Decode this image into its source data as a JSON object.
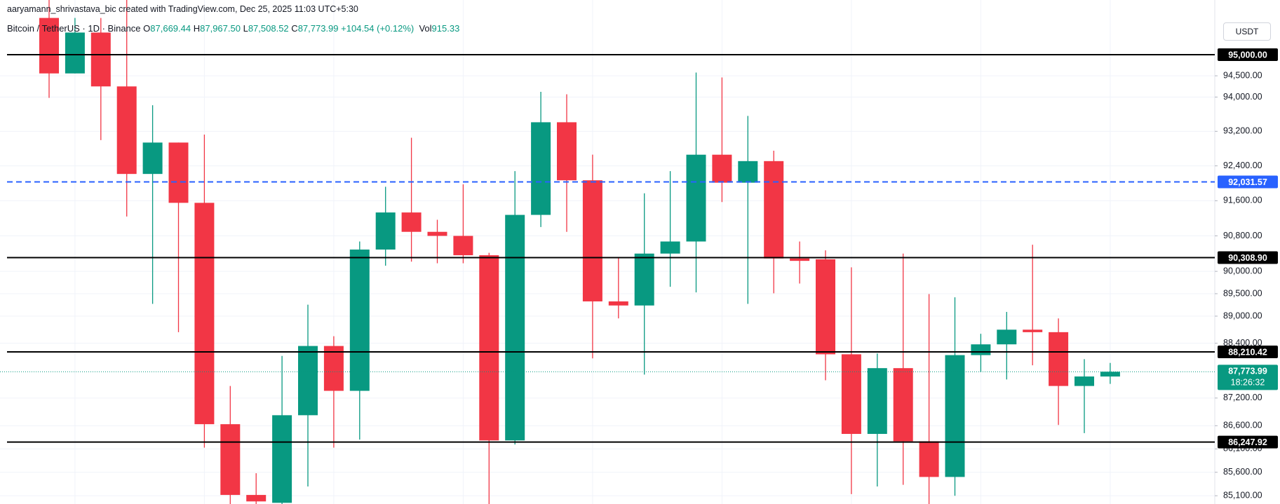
{
  "header": {
    "attribution": "aaryamann_shrivastava_bic created with TradingView.com, Dec 25, 2025 11:03 UTC+5:30",
    "symbol": "Bitcoin / TetherUS · 1D · Binance",
    "ohlc": [
      {
        "label": "O",
        "value": "87,669.44"
      },
      {
        "label": "H",
        "value": "87,967.50"
      },
      {
        "label": "L",
        "value": "87,508.52"
      },
      {
        "label": "C",
        "value": "87,773.99"
      }
    ],
    "change": "+104.54 (+0.12%)",
    "volume": {
      "label": "Vol",
      "value": "915.33"
    },
    "currency": "USDT"
  },
  "chart_data": {
    "type": "candlestick",
    "log": true,
    "grid": true,
    "up_color": "#089981",
    "down_color": "#f23645",
    "ylim": [
      84925,
      96304
    ],
    "yticks": [
      {
        "value": 94500,
        "label": "94,500.00"
      },
      {
        "value": 94000,
        "label": "94,000.00"
      },
      {
        "value": 93200,
        "label": "93,200.00"
      },
      {
        "value": 92400,
        "label": "92,400.00"
      },
      {
        "value": 91600,
        "label": "91,600.00"
      },
      {
        "value": 90800,
        "label": "90,800.00"
      },
      {
        "value": 90000,
        "label": "90,000.00"
      },
      {
        "value": 89500,
        "label": "89,500.00"
      },
      {
        "value": 89000,
        "label": "89,000.00"
      },
      {
        "value": 88400,
        "label": "88,400.00"
      },
      {
        "value": 87200,
        "label": "87,200.00"
      },
      {
        "value": 86600,
        "label": "86,600.00"
      },
      {
        "value": 86100,
        "label": "86,100.00"
      },
      {
        "value": 85600,
        "label": "85,600.00"
      },
      {
        "value": 85100,
        "label": "85,100.00"
      }
    ],
    "open": [
      95874,
      94556,
      95525,
      94250,
      92214,
      92939,
      91552,
      86633,
      85117,
      84950,
      86827,
      88340,
      87357,
      90491,
      91332,
      90892,
      90800,
      90363,
      86283,
      91277,
      93411,
      92068,
      89328,
      89237,
      90400,
      90673,
      92658,
      92013,
      92510,
      90290,
      90272,
      88157,
      86423,
      87853,
      86265,
      85500,
      88139,
      88376,
      88700,
      88645,
      87463,
      87669.44
    ],
    "high": [
      96304,
      95874,
      95874,
      96304,
      93809,
      92939,
      93125,
      87463,
      85580,
      88121,
      89255,
      88555,
      90673,
      91920,
      93050,
      91166,
      91976,
      90418,
      92278,
      94123,
      94066,
      92658,
      90309,
      91771,
      92278,
      94577,
      94461,
      93559,
      92751,
      90673,
      90473,
      90090,
      88175,
      90400,
      89492,
      89419,
      88609,
      89094,
      90600,
      88950,
      88050,
      87967.5
    ],
    "low": [
      93981,
      94556,
      92995,
      91240,
      89273,
      88645,
      86127,
      84925,
      84925,
      84925,
      85297,
      86127,
      86300,
      90127,
      90218,
      90182,
      90182,
      84925,
      86195,
      91000,
      90892,
      88067,
      88950,
      87711,
      89654,
      89528,
      91570,
      89273,
      89510,
      89727,
      87587,
      85135,
      85297,
      85333,
      84925,
      85100,
      87765,
      87605,
      87915,
      86616,
      86440,
      87508.52
    ],
    "close": [
      94556,
      95525,
      94250,
      92214,
      92939,
      91552,
      86633,
      85117,
      84980,
      86827,
      88340,
      87357,
      90491,
      91332,
      90892,
      90800,
      90363,
      86283,
      91277,
      93411,
      92068,
      89328,
      89237,
      90400,
      90673,
      92658,
      92013,
      92510,
      90290,
      90236,
      88157,
      86423,
      87853,
      86265,
      85500,
      88139,
      88376,
      88700,
      88645,
      87463,
      87670,
      87773.99
    ],
    "levels": [
      {
        "value": 95000,
        "label": "95,000.00",
        "color": "#000000",
        "style": "solid"
      },
      {
        "value": 92031.57,
        "label": "92,031.57",
        "color": "#2962ff",
        "style": "dashed"
      },
      {
        "value": 90308.9,
        "label": "90,308.90",
        "color": "#000000",
        "style": "solid"
      },
      {
        "value": 88210.42,
        "label": "88,210.42",
        "color": "#000000",
        "style": "solid"
      },
      {
        "value": 86247.92,
        "label": "86,247.92",
        "color": "#000000",
        "style": "solid"
      }
    ],
    "last_price": {
      "value": 87773.99,
      "label": "87,773.99",
      "countdown": "18:26:32",
      "color": "#089981"
    }
  }
}
